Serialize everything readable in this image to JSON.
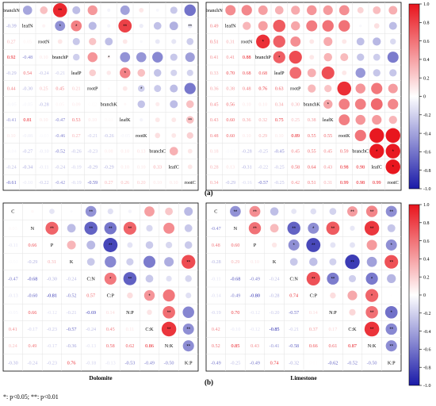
{
  "figure": {
    "label_a": "(a)",
    "label_b": "(b)",
    "footnote": "*: p<0.05; **: p<0.01",
    "colorbar_ticks": [
      "1.0",
      "0.8",
      "0.6",
      "0.4",
      "0.2",
      "0",
      "-0.2",
      "-0.4",
      "-0.6",
      "-0.8",
      "-1.0"
    ],
    "colors": {
      "positive": "#e8141c",
      "negative": "#1a1aa8",
      "neutral": "#ffffff"
    }
  },
  "chart_data": [
    {
      "type": "heatmap",
      "panel": "a-left",
      "title": "",
      "variables": [
        "branchN",
        "leafN",
        "rootN",
        "branchP",
        "leafP",
        "rootP",
        "branchK",
        "leafK",
        "rootK",
        "branchC",
        "leafC",
        "rootC"
      ],
      "matrix": [
        [
          1,
          -0.39,
          0.27,
          0.92,
          -0.29,
          0.44,
          -0.05,
          -0.41,
          0.1,
          -0.04,
          -0.24,
          -0.61
        ],
        [
          -0.39,
          1,
          0.05,
          -0.48,
          0.54,
          -0.3,
          -0.05,
          0.81,
          -0.08,
          -0.27,
          -0.34,
          -0.1
        ],
        [
          0.27,
          0.05,
          1,
          0.1,
          -0.24,
          0.25,
          -0.28,
          0.1,
          -0.03,
          -0.1,
          -0.11,
          -0.22
        ],
        [
          0.92,
          -0.48,
          0.1,
          1,
          -0.21,
          0.45,
          0.05,
          -0.47,
          -0.46,
          -0.52,
          -0.24,
          -0.42
        ],
        [
          -0.29,
          0.54,
          -0.24,
          -0.21,
          1,
          0.21,
          0.09,
          0.53,
          0.27,
          -0.26,
          -0.19,
          -0.19
        ],
        [
          0.44,
          -0.3,
          0.25,
          0.45,
          0.21,
          1,
          0.02,
          0.1,
          -0.21,
          -0.23,
          -0.29,
          -0.59
        ],
        [
          -0.05,
          -0.05,
          -0.28,
          0.05,
          0.09,
          0.02,
          1,
          0.03,
          -0.26,
          0.08,
          -0.29,
          0.27
        ],
        [
          -0.41,
          0.81,
          0.1,
          -0.47,
          0.53,
          0.1,
          0.03,
          1,
          -0.05,
          0.1,
          0.1,
          0.26
        ],
        [
          0.1,
          -0.08,
          -0.03,
          -0.46,
          0.27,
          -0.21,
          -0.26,
          -0.05,
          1,
          0.13,
          0.1,
          0.2
        ],
        [
          -0.04,
          -0.27,
          -0.1,
          -0.52,
          -0.26,
          -0.23,
          0.08,
          0.1,
          0.13,
          1,
          0.33,
          0.1
        ],
        [
          -0.24,
          -0.34,
          -0.11,
          -0.24,
          -0.19,
          -0.29,
          -0.29,
          0.1,
          0.1,
          0.33,
          1,
          0.1
        ],
        [
          -0.61,
          -0.1,
          -0.22,
          -0.42,
          -0.19,
          -0.59,
          0.27,
          0.26,
          0.2,
          0.1,
          0.1,
          1
        ]
      ],
      "significance": [
        [
          0,
          0,
          0,
          2,
          0,
          0,
          0,
          0,
          0,
          0,
          0,
          0
        ],
        [
          0,
          0,
          0,
          1,
          1,
          0,
          0,
          2,
          0,
          0,
          0,
          2
        ],
        [
          0,
          0,
          0,
          0,
          0,
          0,
          0,
          0,
          0,
          0,
          0,
          0
        ],
        [
          2,
          1,
          0,
          0,
          0,
          0,
          1,
          0,
          0,
          0,
          0,
          0
        ],
        [
          0,
          1,
          0,
          0,
          0,
          0,
          0,
          1,
          0,
          0,
          0,
          0
        ],
        [
          0,
          0,
          0,
          0,
          0,
          0,
          0,
          0,
          1,
          0,
          0,
          0
        ],
        [
          0,
          0,
          0,
          1,
          0,
          0,
          0,
          0,
          0,
          0,
          0,
          0
        ],
        [
          0,
          2,
          0,
          0,
          1,
          0,
          0,
          0,
          0,
          0,
          0,
          2
        ],
        [
          0,
          0,
          0,
          0,
          0,
          1,
          0,
          0,
          0,
          0,
          0,
          0
        ],
        [
          0,
          0,
          0,
          0,
          0,
          0,
          0,
          0,
          0,
          0,
          0,
          0
        ],
        [
          0,
          0,
          0,
          0,
          0,
          0,
          0,
          0,
          0,
          0,
          0,
          0
        ],
        [
          0,
          2,
          0,
          0,
          0,
          0,
          0,
          2,
          0,
          0,
          0,
          0
        ]
      ]
    },
    {
      "type": "heatmap",
      "panel": "a-right",
      "title": "",
      "variables": [
        "branchN",
        "leafN",
        "rootN",
        "branchP",
        "leafP",
        "rootP",
        "branchK",
        "leafK",
        "rootK",
        "branchC",
        "leafC",
        "rootC"
      ],
      "matrix": [
        [
          1,
          0.49,
          0.51,
          0.41,
          0.33,
          0.36,
          0.45,
          0.43,
          0.48,
          0.18,
          0.28,
          0.34
        ],
        [
          0.49,
          1,
          0.31,
          0.41,
          0.7,
          0.38,
          0.56,
          0.6,
          0.6,
          -0.03,
          0.13,
          -0.29
        ],
        [
          0.51,
          0.31,
          1,
          0.88,
          0.68,
          0.48,
          0.1,
          0.36,
          0.1,
          -0.28,
          -0.31,
          -0.16
        ],
        [
          0.41,
          0.41,
          0.88,
          1,
          0.68,
          0.76,
          0.1,
          0.32,
          0.29,
          -0.25,
          -0.22,
          -0.57
        ],
        [
          0.33,
          0.7,
          0.68,
          0.68,
          1,
          0.63,
          0.34,
          0.75,
          0.1,
          -0.45,
          -0.25,
          -0.25
        ],
        [
          0.36,
          0.38,
          0.48,
          0.76,
          0.63,
          1,
          0.3,
          0.25,
          0.89,
          0.45,
          0.58,
          0.42
        ],
        [
          0.45,
          0.56,
          0.1,
          0.1,
          0.34,
          0.3,
          1,
          0.38,
          0.55,
          0.55,
          0.64,
          0.51
        ],
        [
          0.43,
          0.6,
          0.36,
          0.32,
          0.75,
          0.25,
          0.38,
          1,
          0.55,
          0.45,
          0.43,
          0.31
        ],
        [
          0.48,
          0.6,
          0.1,
          0.29,
          0.1,
          0.89,
          0.55,
          0.55,
          1,
          0.59,
          0.98,
          0.99
        ],
        [
          0.18,
          -0.03,
          -0.28,
          -0.25,
          -0.45,
          0.45,
          0.55,
          0.45,
          0.59,
          1,
          0.98,
          0.98
        ],
        [
          0.28,
          0.13,
          -0.31,
          -0.22,
          -0.25,
          0.58,
          0.64,
          0.43,
          0.98,
          0.98,
          1,
          0.99
        ],
        [
          0.34,
          -0.29,
          -0.16,
          -0.57,
          -0.25,
          0.42,
          0.51,
          0.31,
          0.99,
          0.98,
          0.99,
          1
        ]
      ],
      "significance": [
        [
          0,
          0,
          0,
          0,
          0,
          0,
          0,
          0,
          0,
          0,
          0,
          0
        ],
        [
          0,
          0,
          0,
          0,
          0,
          0,
          0,
          0,
          0,
          0,
          0,
          0
        ],
        [
          0,
          0,
          0,
          1,
          0,
          0,
          0,
          0,
          0,
          0,
          0,
          0
        ],
        [
          0,
          0,
          1,
          0,
          1,
          0,
          0,
          0,
          0,
          0,
          0,
          0
        ],
        [
          0,
          0,
          0,
          1,
          0,
          0,
          0,
          0,
          0,
          0,
          0,
          0
        ],
        [
          0,
          0,
          0,
          0,
          0,
          0,
          0,
          0,
          0,
          0,
          0,
          0
        ],
        [
          0,
          0,
          0,
          0,
          0,
          0,
          0,
          1,
          0,
          0,
          0,
          0
        ],
        [
          0,
          0,
          0,
          0,
          0,
          0,
          1,
          0,
          0,
          0,
          0,
          0
        ],
        [
          0,
          0,
          0,
          0,
          0,
          0,
          0,
          0,
          0,
          0,
          0,
          0
        ],
        [
          0,
          0,
          0,
          0,
          0,
          0,
          0,
          0,
          0,
          0,
          1,
          1
        ],
        [
          0,
          0,
          0,
          0,
          0,
          0,
          0,
          0,
          0,
          1,
          0,
          1
        ],
        [
          0,
          0,
          0,
          0,
          0,
          0,
          0,
          0,
          0,
          1,
          1,
          0
        ]
      ]
    },
    {
      "type": "heatmap",
      "panel": "b-left",
      "xlabel": "Dolomite",
      "variables": [
        "C",
        "N",
        "P",
        "K",
        "C:N",
        "C:P",
        "N:P",
        "C:K",
        "N:K",
        "K:P"
      ],
      "matrix": [
        [
          1,
          0.03,
          -0.11,
          -0.02,
          -0.47,
          -0.13,
          -0.05,
          0.41,
          0.24,
          -0.3
        ],
        [
          0.03,
          1,
          0.66,
          -0.29,
          -0.68,
          -0.6,
          0.66,
          -0.17,
          0.49,
          -0.24
        ],
        [
          -0.11,
          0.66,
          1,
          0.31,
          -0.3,
          -0.81,
          -0.12,
          -0.23,
          -0.17,
          -0.23
        ],
        [
          -0.02,
          -0.29,
          0.31,
          1,
          -0.24,
          -0.52,
          -0.21,
          -0.57,
          -0.36,
          0.76
        ],
        [
          -0.47,
          -0.68,
          -0.3,
          -0.24,
          1,
          0.57,
          -0.69,
          -0.24,
          -0.13,
          -0.18
        ],
        [
          -0.13,
          -0.6,
          -0.81,
          -0.52,
          0.57,
          1,
          0.14,
          0.45,
          0.58,
          -0.13
        ],
        [
          -0.05,
          0.66,
          -0.12,
          -0.21,
          -0.69,
          0.14,
          1,
          0.11,
          0.62,
          -0.53
        ],
        [
          0.41,
          -0.17,
          -0.23,
          -0.57,
          -0.24,
          0.45,
          0.11,
          1,
          0.86,
          -0.49
        ],
        [
          0.24,
          0.49,
          -0.17,
          -0.36,
          -0.13,
          0.58,
          0.62,
          0.86,
          1,
          -0.5
        ],
        [
          -0.3,
          -0.24,
          -0.23,
          0.76,
          -0.18,
          -0.13,
          -0.53,
          -0.49,
          -0.5,
          1
        ]
      ],
      "significance": [
        [
          0,
          0,
          0,
          0,
          2,
          0,
          0,
          0,
          0,
          0
        ],
        [
          0,
          0,
          2,
          0,
          2,
          2,
          2,
          0,
          0,
          0
        ],
        [
          0,
          2,
          0,
          0,
          0,
          2,
          0,
          0,
          0,
          0
        ],
        [
          0,
          0,
          0,
          0,
          0,
          0,
          0,
          0,
          0,
          2
        ],
        [
          2,
          2,
          0,
          0,
          0,
          1,
          2,
          0,
          0,
          0
        ],
        [
          0,
          2,
          2,
          0,
          1,
          0,
          0,
          1,
          0,
          0
        ],
        [
          0,
          2,
          0,
          0,
          2,
          0,
          0,
          0,
          2,
          0
        ],
        [
          0,
          0,
          0,
          0,
          0,
          1,
          0,
          0,
          2,
          2
        ],
        [
          0,
          0,
          0,
          0,
          0,
          0,
          2,
          2,
          0,
          2
        ],
        [
          0,
          0,
          0,
          2,
          0,
          0,
          0,
          2,
          2,
          0
        ]
      ]
    },
    {
      "type": "heatmap",
      "panel": "b-right",
      "xlabel": "Limestone",
      "variables": [
        "C",
        "N",
        "P",
        "K",
        "C:N",
        "C:P",
        "N:P",
        "C:K",
        "N:K",
        "K:P"
      ],
      "matrix": [
        [
          1,
          -0.47,
          0.48,
          -0.28,
          -0.11,
          -0.14,
          -0.19,
          0.42,
          0.52,
          -0.49
        ],
        [
          -0.47,
          1,
          0.6,
          0.29,
          -0.68,
          -0.49,
          0.7,
          -0.1,
          0.85,
          -0.25
        ],
        [
          0.48,
          0.6,
          1,
          0.1,
          -0.49,
          -0.8,
          -0.12,
          -0.12,
          0.43,
          -0.49
        ],
        [
          -0.28,
          0.29,
          0.1,
          1,
          -0.24,
          -0.28,
          -0.2,
          -0.85,
          -0.41,
          0.74
        ],
        [
          -0.11,
          -0.68,
          -0.49,
          -0.24,
          1,
          0.74,
          -0.57,
          -0.21,
          -0.58,
          -0.32
        ],
        [
          -0.14,
          -0.49,
          -0.8,
          -0.28,
          0.74,
          1,
          0.14,
          0.37,
          0.66,
          0.01
        ],
        [
          -0.19,
          0.7,
          -0.12,
          -0.2,
          -0.57,
          0.14,
          1,
          0.17,
          0.61,
          -0.62
        ],
        [
          0.42,
          -0.1,
          -0.12,
          -0.85,
          -0.21,
          0.37,
          0.17,
          1,
          0.87,
          -0.52
        ],
        [
          0.52,
          0.85,
          0.43,
          -0.41,
          -0.58,
          0.66,
          0.61,
          0.87,
          1,
          -0.5
        ],
        [
          -0.49,
          -0.25,
          -0.49,
          0.74,
          -0.32,
          0.01,
          -0.62,
          -0.52,
          -0.5,
          1
        ]
      ],
      "significance": [
        [
          0,
          2,
          2,
          0,
          0,
          0,
          0,
          2,
          2,
          2
        ],
        [
          2,
          0,
          2,
          0,
          2,
          1,
          2,
          0,
          2,
          0
        ],
        [
          2,
          2,
          0,
          0,
          1,
          2,
          0,
          0,
          0,
          1
        ],
        [
          0,
          0,
          0,
          0,
          0,
          0,
          0,
          2,
          0,
          2
        ],
        [
          0,
          2,
          1,
          0,
          0,
          2,
          2,
          0,
          1,
          0
        ],
        [
          0,
          1,
          2,
          0,
          2,
          0,
          0,
          0,
          1,
          0
        ],
        [
          0,
          2,
          0,
          0,
          2,
          0,
          0,
          0,
          2,
          1
        ],
        [
          2,
          0,
          0,
          2,
          0,
          0,
          0,
          0,
          2,
          2
        ],
        [
          2,
          2,
          0,
          0,
          1,
          1,
          2,
          2,
          0,
          2
        ],
        [
          2,
          0,
          1,
          2,
          0,
          0,
          1,
          2,
          2,
          0
        ]
      ]
    }
  ]
}
